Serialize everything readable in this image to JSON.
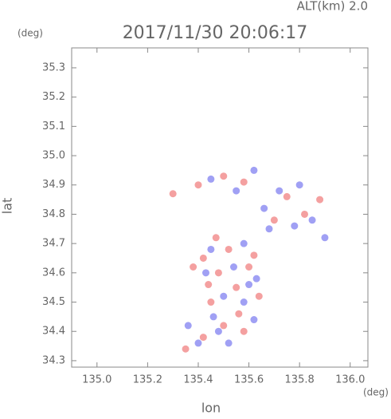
{
  "chart_data": {
    "type": "scatter",
    "title": "2017/11/30 20:06:17",
    "subtitle": "ALT(km) 2.0",
    "x_label": "lon",
    "y_label": "lat",
    "x_unit": "(deg)",
    "y_unit": "(deg)",
    "xlim": [
      134.9,
      136.07
    ],
    "ylim": [
      34.278,
      35.368
    ],
    "xticks": [
      {
        "value": 135,
        "label": "135.0"
      },
      135.2,
      135.4,
      135.6,
      135.8,
      {
        "value": 136,
        "label": "136.0"
      }
    ],
    "yticks": [
      35.3,
      35.2,
      35.1,
      {
        "value": 35,
        "label": "35.0"
      },
      34.9,
      34.8,
      34.7,
      34.6,
      34.5,
      34.4,
      34.3
    ],
    "series": [
      {
        "color": "#f07878",
        "x": [
          135.35,
          135.42,
          135.5,
          135.58,
          135.45,
          135.55,
          135.48,
          135.6,
          135.42,
          135.52,
          135.62,
          135.47,
          135.4,
          135.5,
          135.58,
          135.75,
          135.82,
          135.7,
          135.88,
          135.44,
          135.56,
          135.64,
          135.38,
          135.3
        ],
        "values": [
          34.34,
          34.38,
          34.42,
          34.4,
          34.5,
          34.55,
          34.6,
          34.62,
          34.65,
          34.68,
          34.66,
          34.72,
          34.9,
          34.93,
          34.91,
          34.86,
          34.8,
          34.78,
          34.85,
          34.56,
          34.46,
          34.52,
          34.62,
          34.87
        ]
      },
      {
        "color": "#7878f0",
        "x": [
          135.4,
          135.52,
          135.62,
          135.46,
          135.58,
          135.5,
          135.43,
          135.54,
          135.63,
          135.45,
          135.58,
          135.68,
          135.78,
          135.85,
          135.72,
          135.8,
          135.66,
          135.62,
          135.45,
          135.55,
          135.9,
          135.48,
          135.6,
          135.36
        ],
        "values": [
          34.36,
          34.36,
          34.44,
          34.45,
          34.5,
          34.52,
          34.6,
          34.62,
          34.58,
          34.68,
          34.7,
          34.75,
          34.76,
          34.78,
          34.88,
          34.9,
          34.82,
          34.95,
          34.92,
          34.88,
          34.72,
          34.4,
          34.56,
          34.42
        ]
      }
    ]
  }
}
